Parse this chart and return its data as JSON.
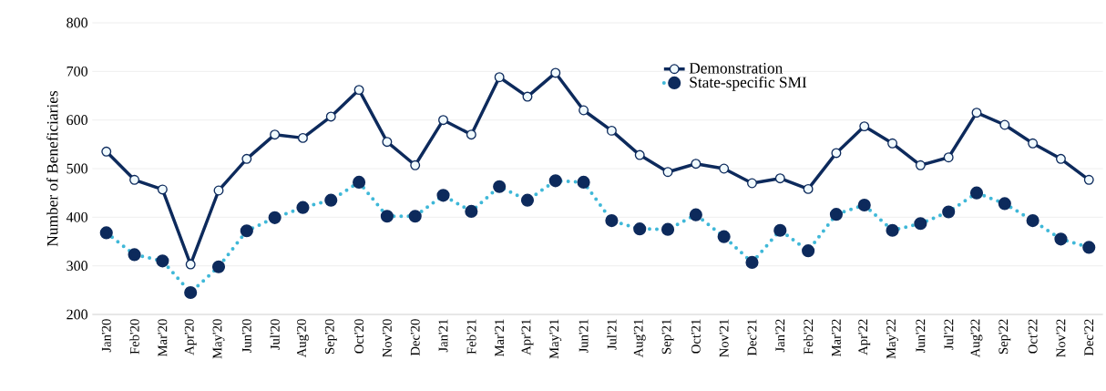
{
  "chart_data": {
    "type": "line",
    "ylabel": "Number of Beneficiaries",
    "categories": [
      "Jan'20",
      "Feb'20",
      "Mar'20",
      "Apr'20",
      "May'20",
      "Jun'20",
      "Jul'20",
      "Aug'20",
      "Sep'20",
      "Oct'20",
      "Nov'20",
      "Dec'20",
      "Jan'21",
      "Feb'21",
      "Mar'21",
      "Apr'21",
      "May'21",
      "Jun'21",
      "Jul'21",
      "Aug'21",
      "Sep'21",
      "Oct'21",
      "Nov'21",
      "Dec'21",
      "Jan'22",
      "Feb'22",
      "Mar'22",
      "Apr'22",
      "May'22",
      "Jun'22",
      "Jul'22",
      "Aug'22",
      "Sep'22",
      "Oct'22",
      "Nov'22",
      "Dec'22"
    ],
    "series": [
      {
        "name": "Demonstration",
        "color": "#0d2a5c",
        "line_style": "solid",
        "marker": "circle",
        "values": [
          535,
          477,
          457,
          303,
          455,
          520,
          570,
          563,
          607,
          662,
          555,
          507,
          600,
          570,
          688,
          648,
          697,
          620,
          578,
          528,
          493,
          510,
          500,
          470,
          480,
          458,
          532,
          587,
          552,
          507,
          523,
          615,
          590,
          552,
          520,
          477
        ]
      },
      {
        "name": "State-specific SMI",
        "color": "#3fb8d8",
        "line_style": "dotted",
        "marker": "circle",
        "values": [
          368,
          323,
          310,
          245,
          298,
          372,
          399,
          420,
          435,
          472,
          402,
          402,
          445,
          412,
          463,
          435,
          475,
          472,
          393,
          376,
          375,
          405,
          360,
          307,
          373,
          331,
          406,
          425,
          373,
          387,
          411,
          450,
          428,
          393,
          355,
          338
        ]
      }
    ],
    "ylim": [
      200,
      800
    ],
    "yticks": [
      200,
      300,
      400,
      500,
      600,
      700,
      800
    ],
    "grid": "y",
    "legend": "top right"
  }
}
